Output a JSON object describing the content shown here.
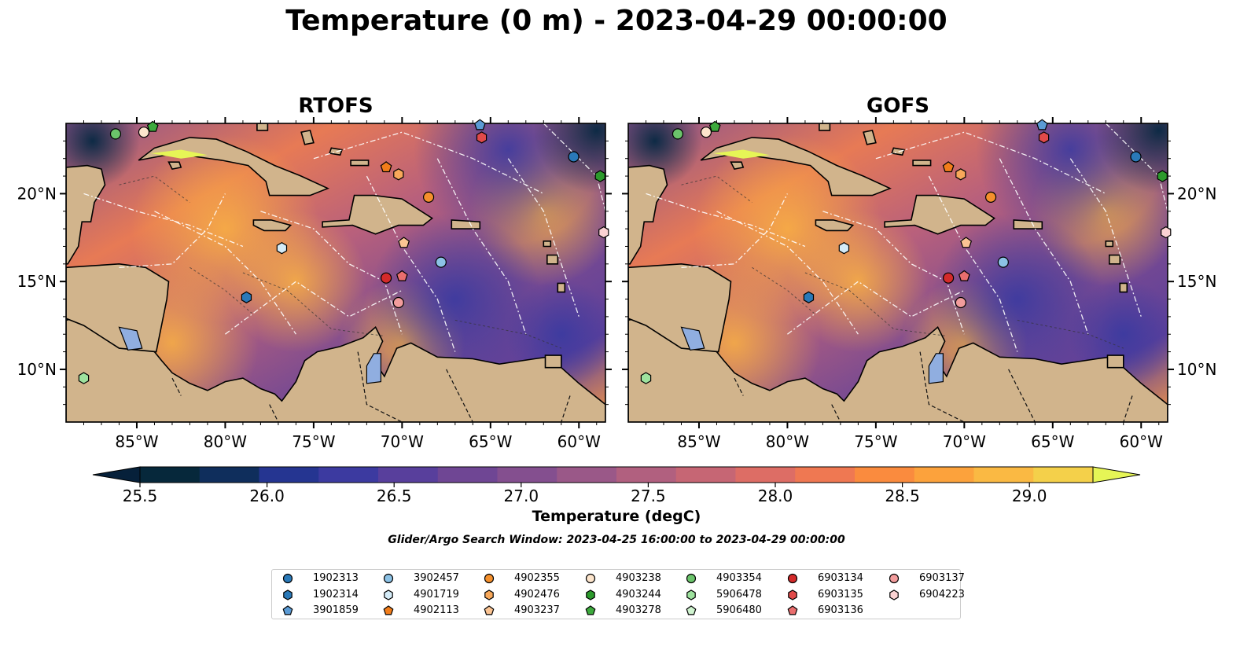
{
  "title": "Temperature (0 m) - 2023-04-29 00:00:00",
  "panels": [
    {
      "title": "RTOFS"
    },
    {
      "title": "GOFS"
    }
  ],
  "axes": {
    "lon_range": [
      -89,
      -58.5
    ],
    "lat_range": [
      7,
      24
    ],
    "lon_ticks": [
      {
        "value": -85,
        "label": "85°W"
      },
      {
        "value": -80,
        "label": "80°W"
      },
      {
        "value": -75,
        "label": "75°W"
      },
      {
        "value": -70,
        "label": "70°W"
      },
      {
        "value": -65,
        "label": "65°W"
      },
      {
        "value": -60,
        "label": "60°W"
      }
    ],
    "lat_ticks": [
      {
        "value": 10,
        "label": "10°N"
      },
      {
        "value": 15,
        "label": "15°N"
      },
      {
        "value": 20,
        "label": "20°N"
      }
    ]
  },
  "colorbar": {
    "label": "Temperature (degC)",
    "range": [
      25.5,
      29.25
    ],
    "ticks": [
      "25.5",
      "26.0",
      "26.5",
      "27.0",
      "27.5",
      "28.0",
      "28.5",
      "29.0"
    ],
    "colors": [
      "#06283b",
      "#0f2e5c",
      "#253591",
      "#3c3aa0",
      "#583f9c",
      "#6f4694",
      "#844f8f",
      "#9a5888",
      "#b1607f",
      "#c66674",
      "#dd6d65",
      "#ef7852",
      "#fa8b3e",
      "#fca23c",
      "#fab943",
      "#f4d04a"
    ],
    "extend_low": "#06203a",
    "extend_high": "#e6f556"
  },
  "subtitle": "Glider/Argo Search Window: 2023-04-25 16:00:00 to 2023-04-29 00:00:00",
  "floats": [
    {
      "id": "1902313",
      "color": "#2a79b8",
      "marker": "circle",
      "lon": -60.3,
      "lat": 22.1
    },
    {
      "id": "1902314",
      "color": "#2a79b8",
      "marker": "hexagon",
      "lon": -78.8,
      "lat": 14.1
    },
    {
      "id": "3901859",
      "color": "#5b9bd5",
      "marker": "pentagon",
      "lon": -65.6,
      "lat": 23.9
    },
    {
      "id": "3902457",
      "color": "#8cc2e6",
      "marker": "circle",
      "lon": -67.8,
      "lat": 16.1
    },
    {
      "id": "4901719",
      "color": "#d4ebf7",
      "marker": "hexagon",
      "lon": -76.8,
      "lat": 16.9
    },
    {
      "id": "4902113",
      "color": "#f27d1a",
      "marker": "pentagon",
      "lon": -70.9,
      "lat": 21.5
    },
    {
      "id": "4902355",
      "color": "#f5902c",
      "marker": "circle",
      "lon": -68.5,
      "lat": 19.8
    },
    {
      "id": "4902476",
      "color": "#f8a85a",
      "marker": "hexagon",
      "lon": -70.2,
      "lat": 21.1
    },
    {
      "id": "4903237",
      "color": "#fbc493",
      "marker": "pentagon",
      "lon": -69.9,
      "lat": 17.2
    },
    {
      "id": "4903238",
      "color": "#fde5cc",
      "marker": "circle",
      "lon": -84.6,
      "lat": 23.5
    },
    {
      "id": "4903244",
      "color": "#2c9a2c",
      "marker": "hexagon",
      "lon": -58.8,
      "lat": 21.0
    },
    {
      "id": "4903278",
      "color": "#3daa3d",
      "marker": "pentagon",
      "lon": -84.1,
      "lat": 23.8
    },
    {
      "id": "4903354",
      "color": "#6bc46b",
      "marker": "circle",
      "lon": -86.2,
      "lat": 23.4
    },
    {
      "id": "5906478",
      "color": "#9ee29e",
      "marker": "hexagon",
      "lon": -88.0,
      "lat": 9.5
    },
    {
      "id": "5906480",
      "color": "#cff3cf",
      "marker": "pentagon",
      "lon": -58.4,
      "lat": 17.3
    },
    {
      "id": "6903134",
      "color": "#d42a2a",
      "marker": "circle",
      "lon": -70.9,
      "lat": 15.2
    },
    {
      "id": "6903135",
      "color": "#e04a4a",
      "marker": "hexagon",
      "lon": -65.5,
      "lat": 23.2
    },
    {
      "id": "6903136",
      "color": "#ea6e6e",
      "marker": "pentagon",
      "lon": -70.0,
      "lat": 15.3
    },
    {
      "id": "6903137",
      "color": "#f29c9c",
      "marker": "circle",
      "lon": -70.2,
      "lat": 13.8
    },
    {
      "id": "6904223",
      "color": "#fbd3d3",
      "marker": "hexagon",
      "lon": -58.6,
      "lat": 17.8
    }
  ]
}
